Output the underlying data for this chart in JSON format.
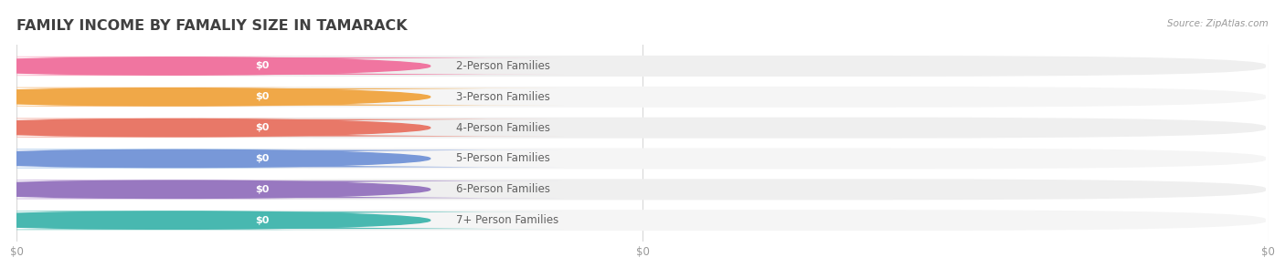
{
  "title": "FAMILY INCOME BY FAMALIY SIZE IN TAMARACK",
  "source": "Source: ZipAtlas.com",
  "categories": [
    "2-Person Families",
    "3-Person Families",
    "4-Person Families",
    "5-Person Families",
    "6-Person Families",
    "7+ Person Families"
  ],
  "values": [
    0,
    0,
    0,
    0,
    0,
    0
  ],
  "bar_colors": [
    "#F9A8C0",
    "#F9C48A",
    "#F4ADA0",
    "#A8C8EC",
    "#C8AEDC",
    "#82D0C8"
  ],
  "dot_colors": [
    "#F075A0",
    "#F0A848",
    "#E87868",
    "#7898D8",
    "#9878C0",
    "#48B8B0"
  ],
  "bar_bg_color": "#EFEFEF",
  "bar_bg_color_alt": "#F5F5F5",
  "label_color": "#606060",
  "value_label_color": "#FFFFFF",
  "title_color": "#404040",
  "source_color": "#999999",
  "background_color": "#FFFFFF",
  "bar_height": 0.68,
  "title_fontsize": 11.5,
  "label_fontsize": 8.5,
  "value_fontsize": 8,
  "source_fontsize": 7.5,
  "xtick_labels": [
    "$0",
    "$0",
    "$0"
  ],
  "xtick_positions": [
    0.0,
    0.5,
    1.0
  ],
  "grid_color": "#D8D8D8"
}
